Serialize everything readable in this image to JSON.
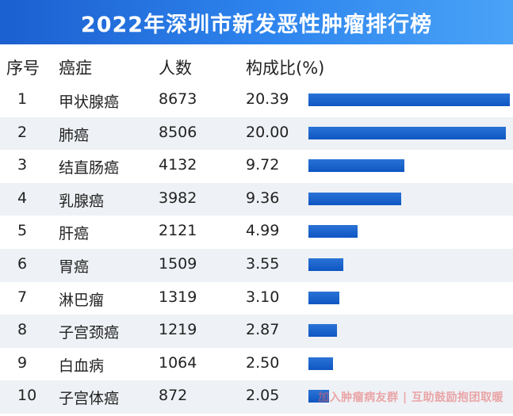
{
  "title": "2022年深圳市新发恶性肿瘤排行榜",
  "headers": {
    "rank": "序号",
    "cancer": "癌症",
    "count": "人数",
    "ratio": "构成比(%)"
  },
  "watermark": "加入肿瘤病友群 | 互助鼓励抱团取暖",
  "colors": {
    "accent": "#1b5fd0",
    "bar": "#0f56c2",
    "row_alt": "#eef1f5"
  },
  "chart_data": {
    "type": "bar",
    "title": "2022年深圳市新发恶性肿瘤排行榜",
    "categories": [
      "甲状腺癌",
      "肺癌",
      "结直肠癌",
      "乳腺癌",
      "肝癌",
      "胃癌",
      "淋巴瘤",
      "子宫颈癌",
      "白血病",
      "子宫体癌"
    ],
    "ranks": [
      "1",
      "2",
      "3",
      "4",
      "5",
      "6",
      "7",
      "8",
      "9",
      "10"
    ],
    "counts": [
      "8673",
      "8506",
      "4132",
      "3982",
      "2121",
      "1509",
      "1319",
      "1219",
      "1064",
      "872"
    ],
    "values": [
      20.39,
      20.0,
      9.72,
      9.36,
      4.99,
      3.55,
      3.1,
      2.87,
      2.5,
      2.05
    ],
    "value_labels": [
      "20.39",
      "20.00",
      "9.72",
      "9.36",
      "4.99",
      "3.55",
      "3.10",
      "2.87",
      "2.50",
      "2.05"
    ],
    "orientation": "horizontal",
    "xlim": [
      0,
      20.39
    ]
  }
}
